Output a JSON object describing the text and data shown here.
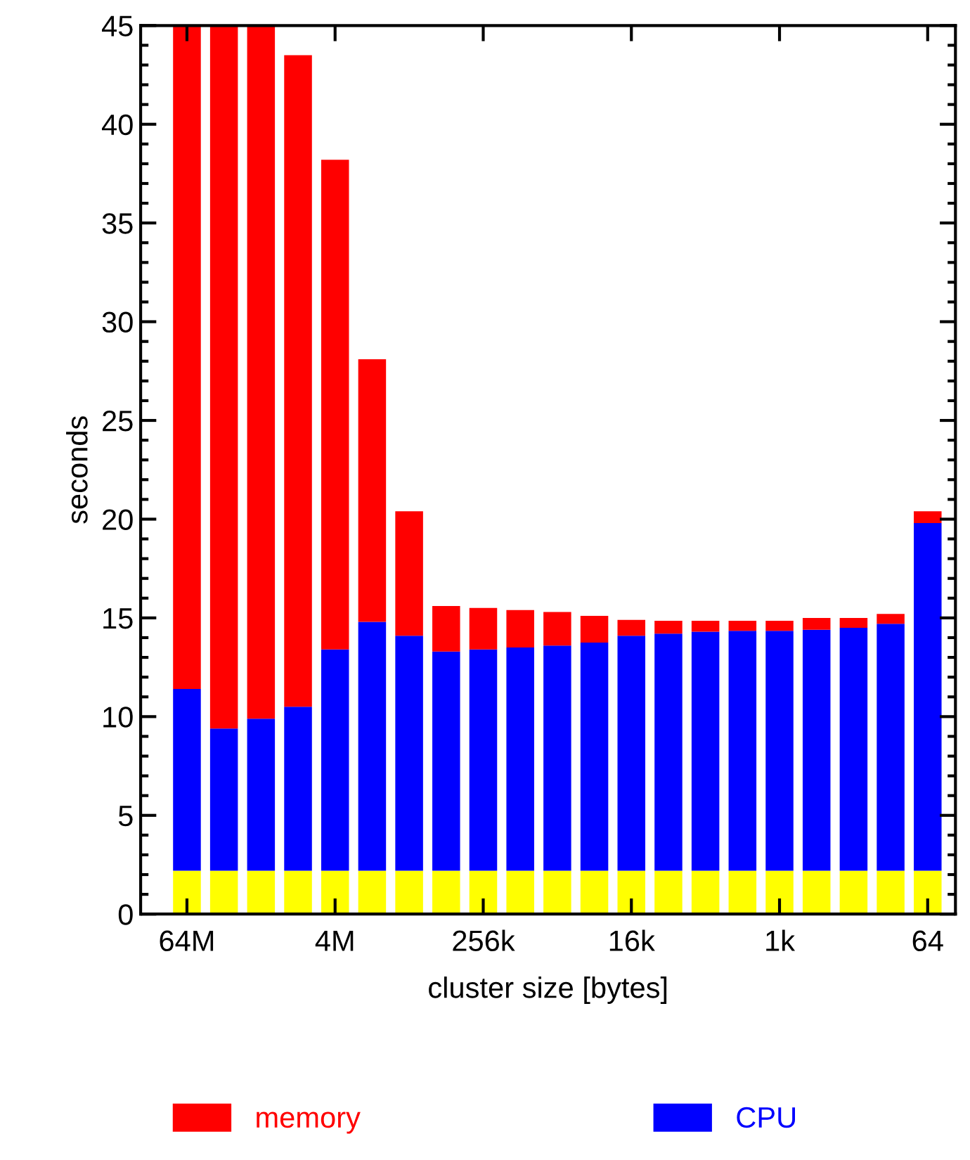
{
  "chart_data": {
    "type": "bar",
    "stacked": true,
    "categories": [
      "64M",
      null,
      null,
      null,
      "4M",
      null,
      null,
      null,
      "256k",
      null,
      null,
      null,
      "16k",
      null,
      null,
      null,
      "1k",
      null,
      null,
      null,
      "64"
    ],
    "series": [
      {
        "color": "#ffff00",
        "values": [
          2.2,
          2.2,
          2.2,
          2.2,
          2.2,
          2.2,
          2.2,
          2.2,
          2.2,
          2.2,
          2.2,
          2.2,
          2.2,
          2.2,
          2.2,
          2.2,
          2.2,
          2.2,
          2.2,
          2.2,
          2.2
        ]
      },
      {
        "name": "CPU",
        "color": "#0000ff",
        "values": [
          9.2,
          7.2,
          7.7,
          8.3,
          11.2,
          12.6,
          11.9,
          11.1,
          11.2,
          11.3,
          11.4,
          11.55,
          11.9,
          12.0,
          12.1,
          12.15,
          12.15,
          12.2,
          12.3,
          12.5,
          17.6
        ]
      },
      {
        "name": "memory",
        "color": "#ff0000",
        "values": [
          33.6,
          35.6,
          35.1,
          33.0,
          24.8,
          13.3,
          6.3,
          2.3,
          2.1,
          1.9,
          1.7,
          1.35,
          0.8,
          0.65,
          0.55,
          0.5,
          0.5,
          0.6,
          0.5,
          0.5,
          0.6
        ]
      }
    ],
    "xlabel": "cluster size [bytes]",
    "ylabel": "seconds",
    "ylim": [
      0,
      45
    ],
    "yticks": [
      0,
      5,
      10,
      15,
      20,
      25,
      30,
      35,
      40,
      45
    ],
    "grid": false,
    "legend": "bottom"
  }
}
